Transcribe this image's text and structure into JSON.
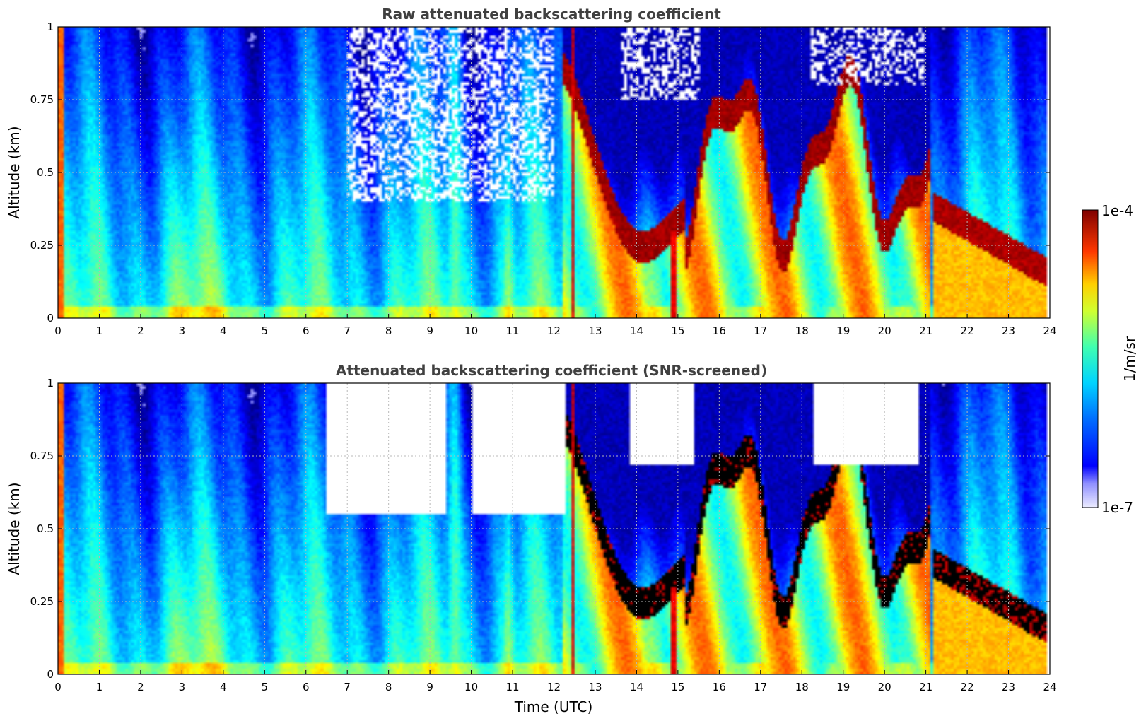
{
  "chart_data": [
    {
      "type": "heatmap",
      "title": "Raw attenuated backscattering coefficient",
      "xlabel": "",
      "ylabel": "Altitude (km)",
      "xlim": [
        0,
        24
      ],
      "ylim": [
        0,
        1
      ],
      "x_ticks": [
        "0",
        "1",
        "2",
        "3",
        "4",
        "5",
        "6",
        "7",
        "8",
        "9",
        "10",
        "11",
        "12",
        "13",
        "14",
        "15",
        "16",
        "17",
        "18",
        "19",
        "20",
        "21",
        "22",
        "23",
        "24"
      ],
      "y_ticks": [
        "0",
        "0.25",
        "0.5",
        "0.75",
        "1"
      ],
      "grid": true,
      "screened": false
    },
    {
      "type": "heatmap",
      "title": "Attenuated backscattering coefficient (SNR-screened)",
      "xlabel": "Time (UTC)",
      "ylabel": "Altitude (km)",
      "xlim": [
        0,
        24
      ],
      "ylim": [
        0,
        1
      ],
      "x_ticks": [
        "0",
        "1",
        "2",
        "3",
        "4",
        "5",
        "6",
        "7",
        "8",
        "9",
        "10",
        "11",
        "12",
        "13",
        "14",
        "15",
        "16",
        "17",
        "18",
        "19",
        "20",
        "21",
        "22",
        "23",
        "24"
      ],
      "y_ticks": [
        "0",
        "0.25",
        "0.5",
        "0.75",
        "1"
      ],
      "grid": true,
      "screened": true
    }
  ],
  "colorbar": {
    "label": "1/m/sr",
    "max_label": "1e-4",
    "min_label": "1e-7",
    "scale": "log",
    "range": [
      1e-07,
      0.0001
    ],
    "colormap": "jet-with-light-lower-end"
  },
  "colors": {
    "title": "#404040",
    "grid": "#b8b8b8"
  }
}
